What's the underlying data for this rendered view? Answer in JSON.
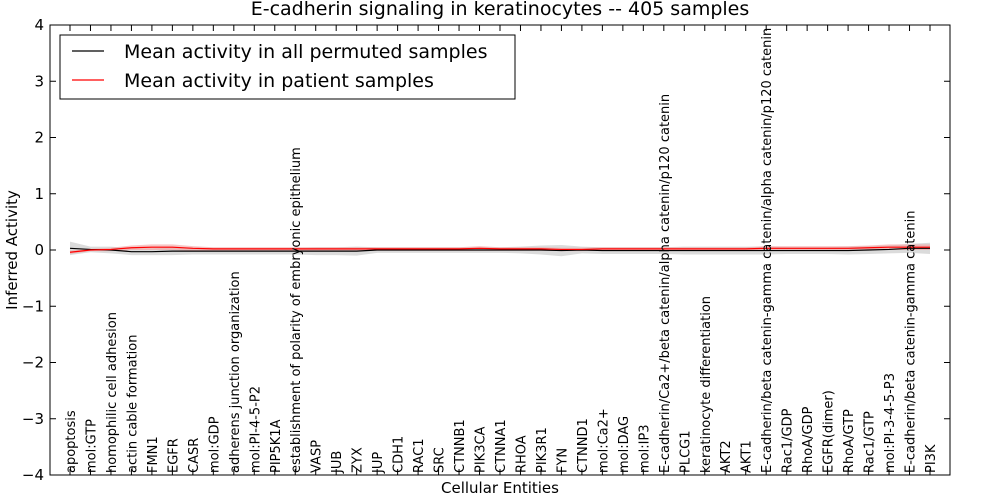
{
  "chart_data": {
    "type": "line",
    "title": "E-cadherin signaling in keratinocytes -- 405 samples",
    "xlabel": "Cellular Entities",
    "ylabel": "Inferred Activity",
    "ylim": [
      -4,
      4
    ],
    "yticks": [
      -4,
      -3,
      -2,
      -1,
      0,
      1,
      2,
      3,
      4
    ],
    "ytick_labels": [
      "−4",
      "−3",
      "−2",
      "−1",
      "0",
      "1",
      "2",
      "3",
      "4"
    ],
    "grid": false,
    "legend_position": "top-left",
    "categories": [
      "apoptosis",
      "mol:GTP",
      "homophilic cell adhesion",
      "actin cable formation",
      "FMN1",
      "EGFR",
      "CASR",
      "mol:GDP",
      "adherens junction organization",
      "mol:PI-4-5-P2",
      "PIP5K1A",
      "establishment of polarity of embryonic epithelium",
      "VASP",
      "JUB",
      "ZYX",
      "JUP",
      "CDH1",
      "RAC1",
      "SRC",
      "CTNNB1",
      "PIK3CA",
      "CTNNA1",
      "RHOA",
      "PIK3R1",
      "FYN",
      "CTNND1",
      "mol:Ca2+",
      "mol:DAG",
      "mol:IP3",
      "E-cadherin/Ca2+/beta catenin/alpha catenin/p120 catenin",
      "PLCG1",
      "keratinocyte differentiation",
      "AKT2",
      "AKT1",
      "E-cadherin/beta catenin-gamma catenin/alpha catenin/p120 catenin",
      "Rac1/GDP",
      "RhoA/GDP",
      "EGFR(dimer)",
      "RhoA/GTP",
      "Rac1/GTP",
      "mol:PI-3-4-5-P3",
      "E-cadherin/beta catenin-gamma catenin",
      "PI3K"
    ],
    "series": [
      {
        "name": "Mean activity in all permuted samples",
        "color": "#000000",
        "band_color": "#cccccc",
        "values": [
          0.03,
          0.01,
          0.0,
          -0.03,
          -0.03,
          -0.02,
          -0.02,
          -0.02,
          -0.02,
          -0.02,
          -0.02,
          -0.02,
          -0.02,
          -0.02,
          -0.02,
          0.0,
          0.0,
          0.0,
          0.0,
          0.0,
          0.0,
          0.0,
          0.0,
          0.0,
          -0.01,
          0.0,
          -0.01,
          -0.01,
          -0.01,
          -0.01,
          -0.01,
          -0.01,
          -0.01,
          -0.01,
          -0.01,
          -0.01,
          -0.01,
          -0.01,
          -0.01,
          0.0,
          0.01,
          0.03,
          0.03
        ],
        "band": [
          0.12,
          0.05,
          0.06,
          0.06,
          0.06,
          0.07,
          0.06,
          0.06,
          0.06,
          0.06,
          0.06,
          0.06,
          0.07,
          0.07,
          0.08,
          0.05,
          0.05,
          0.05,
          0.05,
          0.05,
          0.05,
          0.05,
          0.06,
          0.08,
          0.1,
          0.06,
          0.06,
          0.06,
          0.06,
          0.06,
          0.07,
          0.07,
          0.07,
          0.07,
          0.07,
          0.06,
          0.06,
          0.06,
          0.07,
          0.07,
          0.07,
          0.08,
          0.1
        ]
      },
      {
        "name": "Mean activity in patient samples",
        "color": "#ff0000",
        "band_color": "#f2a0a0",
        "values": [
          -0.04,
          0.0,
          0.01,
          0.04,
          0.05,
          0.05,
          0.03,
          0.02,
          0.02,
          0.02,
          0.02,
          0.02,
          0.02,
          0.02,
          0.02,
          0.02,
          0.02,
          0.02,
          0.02,
          0.02,
          0.03,
          0.02,
          0.02,
          0.02,
          0.01,
          0.01,
          0.02,
          0.02,
          0.02,
          0.02,
          0.02,
          0.02,
          0.02,
          0.02,
          0.03,
          0.03,
          0.03,
          0.03,
          0.03,
          0.04,
          0.05,
          0.05,
          0.05
        ],
        "band": [
          0.03,
          0.02,
          0.03,
          0.04,
          0.05,
          0.05,
          0.04,
          0.03,
          0.03,
          0.03,
          0.03,
          0.03,
          0.03,
          0.03,
          0.03,
          0.03,
          0.03,
          0.03,
          0.03,
          0.03,
          0.04,
          0.03,
          0.03,
          0.03,
          0.03,
          0.03,
          0.03,
          0.03,
          0.03,
          0.03,
          0.03,
          0.03,
          0.03,
          0.03,
          0.04,
          0.04,
          0.04,
          0.04,
          0.04,
          0.04,
          0.05,
          0.05,
          0.05
        ]
      }
    ]
  }
}
